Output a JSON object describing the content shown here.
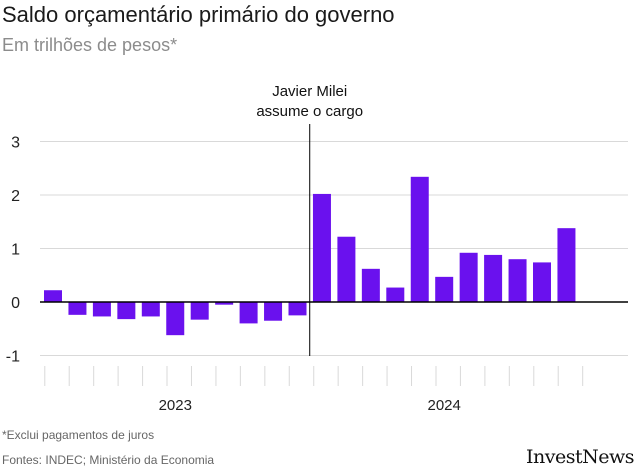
{
  "title": "Saldo orçamentário primário do governo",
  "subtitle": "Em trilhões de pesos*",
  "footnote": "*Exclui pagamentos de juros",
  "source": "Fontes: INDEC; Ministério da Economia",
  "brand": "InvestNews",
  "colors": {
    "bar": "#6a11ee",
    "axis": "#000000",
    "grid": "#d9d9d9",
    "text": "#222222"
  },
  "chart_data": {
    "type": "bar",
    "ylim": [
      -1,
      3
    ],
    "yticks": [
      3,
      2,
      1,
      0,
      -1
    ],
    "grid": true,
    "series": [
      {
        "values": [
          0.22,
          -0.24,
          -0.27,
          -0.32,
          -0.27,
          -0.62,
          -0.33,
          -0.05,
          -0.4,
          -0.35,
          -0.25,
          2.02,
          1.22,
          0.62,
          0.27,
          2.34,
          0.47,
          0.92,
          0.88,
          0.8,
          0.74,
          1.38
        ]
      }
    ],
    "groups": [
      {
        "label": "2023",
        "start": 0,
        "end": 11
      },
      {
        "label": "2024",
        "start": 11,
        "end": 22
      }
    ],
    "annotation": {
      "line1": "Javier Milei",
      "line2": "assume o cargo",
      "after_index": 10
    }
  }
}
